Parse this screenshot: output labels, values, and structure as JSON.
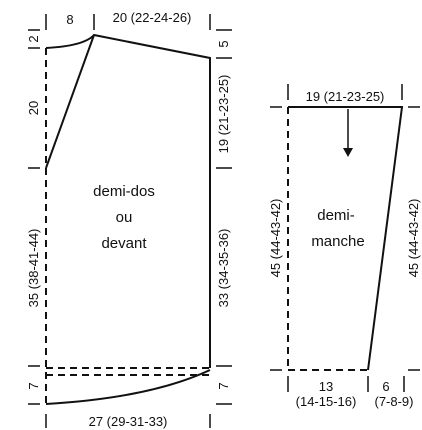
{
  "back_front": {
    "dim_top_left": "8",
    "dim_top_right": "20 (22-24-26)",
    "dim_left_top": "2",
    "dim_left_armhole": "20",
    "dim_left_side": "35 (38-41-44)",
    "dim_left_bottom": "7",
    "dim_right_top": "5",
    "dim_right_armhole": "19 (21-23-25)",
    "dim_right_side": "33 (34-35-36)",
    "dim_right_bottom": "7",
    "dim_bottom": "27 (29-31-33)",
    "label_line1": "demi-dos",
    "label_line2": "ou",
    "label_line3": "devant"
  },
  "sleeve": {
    "dim_top": "19 (21-23-25)",
    "dim_left": "45 (44-43-42)",
    "dim_right": "45 (44-43-42)",
    "dim_bottom_a_line1": "13",
    "dim_bottom_a_line2": "(14-15-16)",
    "dim_bottom_b_line1": "6",
    "dim_bottom_b_line2": "(7-8-9)",
    "label_line1": "demi-",
    "label_line2": "manche"
  },
  "colors": {
    "ink": "#111111",
    "background": "#ffffff"
  }
}
